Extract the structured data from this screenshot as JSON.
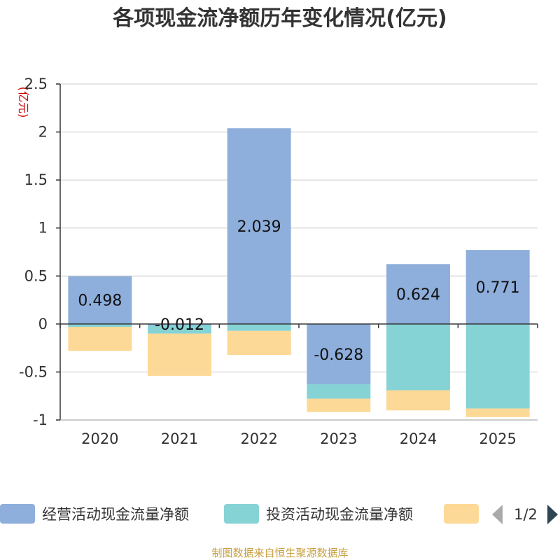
{
  "chart_data": {
    "type": "bar",
    "stacked": true,
    "title": "各项现金流净额历年变化情况(亿元)",
    "unit_label": "(亿元)",
    "categories": [
      "2020",
      "2021",
      "2022",
      "2023",
      "2024",
      "2025"
    ],
    "ylim": [
      -1,
      2.5
    ],
    "yticks": [
      2.5,
      2,
      1.5,
      1,
      0.5,
      0,
      -0.5,
      -1
    ],
    "ytick_labels": [
      "2.5",
      "2",
      "1.5",
      "1",
      "0.5",
      "0",
      "-0.5",
      "-1"
    ],
    "grid": true,
    "legend_position": "bottom",
    "series": [
      {
        "name": "经营活动现金流量净额",
        "color": "#8eaedb",
        "values": [
          0.498,
          -0.012,
          2.039,
          -0.628,
          0.624,
          0.771
        ],
        "labels": [
          "0.498",
          "-0.012",
          "2.039",
          "-0.628",
          "0.624",
          "0.771"
        ],
        "show_labels": true
      },
      {
        "name": "投资活动现金流量净额",
        "color": "#86d3d6",
        "values": [
          -0.03,
          -0.088,
          -0.072,
          -0.15,
          -0.69,
          -0.88
        ],
        "show_labels": false
      },
      {
        "name": "",
        "color": "#fdd997",
        "values": [
          -0.25,
          -0.44,
          -0.25,
          -0.14,
          -0.21,
          -0.09
        ],
        "show_labels": false
      }
    ]
  },
  "legend": {
    "page": "1/2"
  },
  "footer": {
    "source": "制图数据来自恒生聚源数据库"
  }
}
